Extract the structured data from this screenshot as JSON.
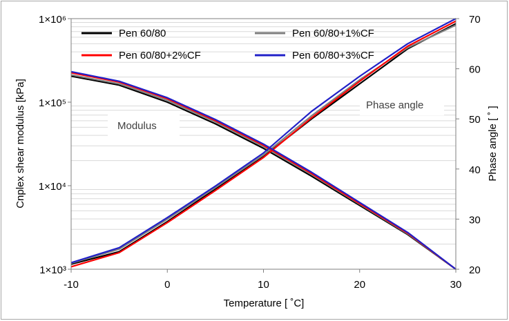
{
  "chart_data": {
    "type": "line",
    "xlabel": "Temperature [ ˚C]",
    "ylabel": "Cnplex shear modulus [kPa]",
    "y2label": "Phase angle [ ˚ ]",
    "xlim": [
      -10,
      30
    ],
    "ylim": [
      1000,
      1000000
    ],
    "yscale": "log",
    "y2lim": [
      20,
      70
    ],
    "x_ticks": [
      "-10",
      "0",
      "10",
      "20",
      "30"
    ],
    "y_ticks": [
      "1×10³",
      "1×10⁴",
      "1×10⁵",
      "1×10⁶"
    ],
    "y2_ticks": [
      "20",
      "30",
      "40",
      "50",
      "60",
      "70"
    ],
    "grid": "horizontal minor lines",
    "legend_position": "top-left",
    "annotations": [
      {
        "text": "Modulus"
      },
      {
        "text": "Phase angle"
      }
    ],
    "x": [
      -10,
      -5,
      0,
      5,
      10,
      15,
      20,
      25,
      30
    ],
    "series": [
      {
        "name": "Pen 60/80",
        "color": "#000000",
        "modulus": [
          205000,
          160000,
          100000,
          55000,
          28000,
          13000,
          5800,
          2600,
          1000
        ],
        "phase_angle": [
          21,
          23.5,
          29.5,
          36,
          42.5,
          50,
          57,
          64,
          69
        ]
      },
      {
        "name": "Pen 60/80+1%CF",
        "color": "#808080",
        "modulus": [
          212000,
          166000,
          105000,
          58000,
          29500,
          13600,
          6000,
          2650,
          1000
        ],
        "phase_angle": [
          21.2,
          24,
          30,
          36.3,
          42.8,
          50.6,
          57.8,
          64.2,
          68.7
        ]
      },
      {
        "name": "Pen 60/80+2%CF",
        "color": "#ff0000",
        "modulus": [
          225000,
          174000,
          110000,
          60000,
          30500,
          14000,
          6100,
          2700,
          1000
        ],
        "phase_angle": [
          20.5,
          23.3,
          29.3,
          35.7,
          42.3,
          50.2,
          57.5,
          64.5,
          69.5
        ]
      },
      {
        "name": "Pen 60/80+3%CF",
        "color": "#2020c8",
        "modulus": [
          232000,
          178000,
          113000,
          62000,
          31500,
          14500,
          6300,
          2750,
          1000
        ],
        "phase_angle": [
          21.3,
          24.3,
          30.3,
          36.6,
          43.2,
          51.5,
          58.5,
          65,
          70
        ]
      }
    ]
  }
}
